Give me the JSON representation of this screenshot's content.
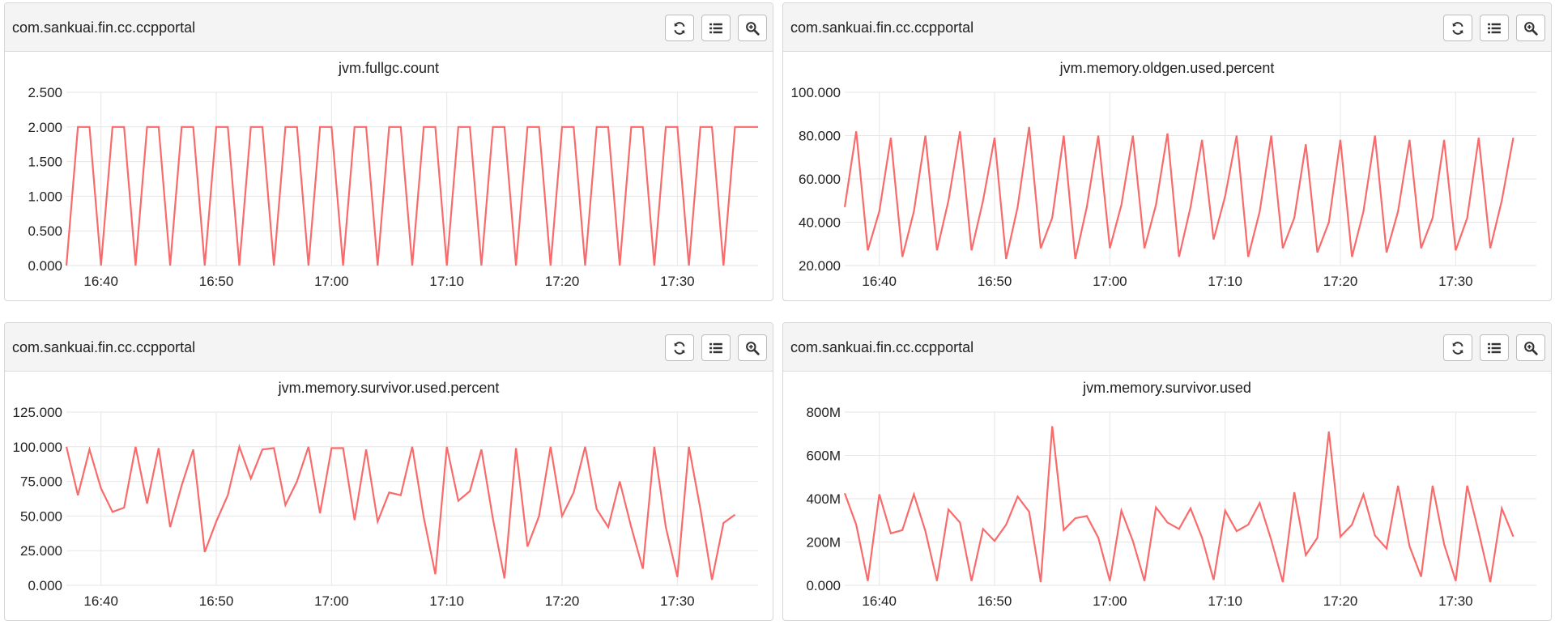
{
  "panels": [
    {
      "header": "com.sankuai.fin.cc.ccpportal",
      "buttons": {
        "refresh": "refresh-icon",
        "list": "list-icon",
        "zoom": "zoom-in-icon"
      }
    },
    {
      "header": "com.sankuai.fin.cc.ccpportal",
      "buttons": {
        "refresh": "refresh-icon",
        "list": "list-icon",
        "zoom": "zoom-in-icon"
      }
    },
    {
      "header": "com.sankuai.fin.cc.ccpportal",
      "buttons": {
        "refresh": "refresh-icon",
        "list": "list-icon",
        "zoom": "zoom-in-icon"
      }
    },
    {
      "header": "com.sankuai.fin.cc.ccpportal",
      "buttons": {
        "refresh": "refresh-icon",
        "list": "list-icon",
        "zoom": "zoom-in-icon"
      }
    }
  ],
  "colors": {
    "line": "#f96b6b",
    "grid": "#e6e6e6",
    "header_bg": "#f4f4f4"
  },
  "chart_data": [
    {
      "type": "line",
      "title": "jvm.fullgc.count",
      "xlim": [
        "16:37",
        "17:37"
      ],
      "ylim": [
        0,
        2.5
      ],
      "yticks": [
        0,
        0.5,
        1,
        1.5,
        2,
        2.5
      ],
      "yticklabels": [
        "0.000",
        "0.500",
        "1.000",
        "1.500",
        "2.000",
        "2.500"
      ],
      "xticks": [
        "16:40",
        "16:50",
        "17:00",
        "17:10",
        "17:20",
        "17:30"
      ],
      "grid": true,
      "series": [
        {
          "x": [
            "16:37",
            "16:38",
            "16:39",
            "16:40",
            "16:41",
            "16:42",
            "16:43",
            "16:44",
            "16:45",
            "16:46",
            "16:47",
            "16:48",
            "16:49",
            "16:50",
            "16:51",
            "16:52",
            "16:53",
            "16:54",
            "16:55",
            "16:56",
            "16:57",
            "16:58",
            "16:59",
            "17:00",
            "17:01",
            "17:02",
            "17:03",
            "17:04",
            "17:05",
            "17:06",
            "17:07",
            "17:08",
            "17:09",
            "17:10",
            "17:11",
            "17:12",
            "17:13",
            "17:14",
            "17:15",
            "17:16",
            "17:17",
            "17:18",
            "17:19",
            "17:20",
            "17:21",
            "17:22",
            "17:23",
            "17:24",
            "17:25",
            "17:26",
            "17:27",
            "17:28",
            "17:29",
            "17:30",
            "17:31",
            "17:32",
            "17:33",
            "17:34",
            "17:35",
            "17:36",
            "17:37"
          ],
          "y": [
            0,
            2,
            2,
            0,
            2,
            2,
            0,
            2,
            2,
            0,
            2,
            2,
            0,
            2,
            2,
            0,
            2,
            2,
            0,
            2,
            2,
            0,
            2,
            2,
            0,
            2,
            2,
            0,
            2,
            2,
            0,
            2,
            2,
            0,
            2,
            2,
            0,
            2,
            2,
            0,
            2,
            2,
            0,
            2,
            2,
            0,
            2,
            2,
            0,
            2,
            2,
            0,
            2,
            2,
            0,
            2,
            2,
            0,
            2,
            2,
            2
          ]
        }
      ]
    },
    {
      "type": "line",
      "title": "jvm.memory.oldgen.used.percent",
      "xlim": [
        "16:37",
        "17:37"
      ],
      "ylim": [
        20,
        100
      ],
      "yticks": [
        20,
        40,
        60,
        80,
        100
      ],
      "yticklabels": [
        "20.000",
        "40.000",
        "60.000",
        "80.000",
        "100.000"
      ],
      "xticks": [
        "16:40",
        "16:50",
        "17:00",
        "17:10",
        "17:20",
        "17:30"
      ],
      "grid": true,
      "series": [
        {
          "x": [
            "16:37",
            "16:38",
            "16:39",
            "16:40",
            "16:41",
            "16:42",
            "16:43",
            "16:44",
            "16:45",
            "16:46",
            "16:47",
            "16:48",
            "16:49",
            "16:50",
            "16:51",
            "16:52",
            "16:53",
            "16:54",
            "16:55",
            "16:56",
            "16:57",
            "16:58",
            "16:59",
            "17:00",
            "17:01",
            "17:02",
            "17:03",
            "17:04",
            "17:05",
            "17:06",
            "17:07",
            "17:08",
            "17:09",
            "17:10",
            "17:11",
            "17:12",
            "17:13",
            "17:14",
            "17:15",
            "17:16",
            "17:17",
            "17:18",
            "17:19",
            "17:20",
            "17:21",
            "17:22",
            "17:23",
            "17:24",
            "17:25",
            "17:26",
            "17:27",
            "17:28",
            "17:29",
            "17:30",
            "17:31",
            "17:32",
            "17:33",
            "17:34",
            "17:35",
            "17:36",
            "17:37"
          ],
          "y": [
            47,
            82,
            27,
            45,
            79,
            24,
            45,
            80,
            27,
            50,
            82,
            27,
            50,
            79,
            23,
            47,
            84,
            28,
            42,
            80,
            23,
            47,
            80,
            28,
            48,
            80,
            28,
            48,
            81,
            24,
            47,
            78,
            32,
            52,
            80,
            24,
            45,
            80,
            28,
            42,
            76,
            26,
            40,
            78,
            24,
            45,
            80,
            26,
            45,
            78,
            28,
            42,
            78,
            27,
            42,
            79,
            28,
            50,
            79,
            null,
            null
          ],
          "note_x": []
        }
      ]
    },
    {
      "type": "line",
      "title": "jvm.memory.survivor.used.percent",
      "xlim": [
        "16:37",
        "17:37"
      ],
      "ylim": [
        0,
        125
      ],
      "yticks": [
        0,
        25,
        50,
        75,
        100,
        125
      ],
      "yticklabels": [
        "0.000",
        "25.000",
        "50.000",
        "75.000",
        "100.000",
        "125.000"
      ],
      "xticks": [
        "16:40",
        "16:50",
        "17:00",
        "17:10",
        "17:20",
        "17:30"
      ],
      "grid": true,
      "series": [
        {
          "x": [
            "16:37",
            "16:38",
            "16:39",
            "16:40",
            "16:41",
            "16:42",
            "16:43",
            "16:44",
            "16:45",
            "16:46",
            "16:47",
            "16:48",
            "16:49",
            "16:50",
            "16:51",
            "16:52",
            "16:53",
            "16:54",
            "16:55",
            "16:56",
            "16:57",
            "16:58",
            "16:59",
            "17:00",
            "17:01",
            "17:02",
            "17:03",
            "17:04",
            "17:05",
            "17:06",
            "17:07",
            "17:08",
            "17:09",
            "17:10",
            "17:11",
            "17:12",
            "17:13",
            "17:14",
            "17:15",
            "17:16",
            "17:17",
            "17:18",
            "17:19",
            "17:20",
            "17:21",
            "17:22",
            "17:23",
            "17:24",
            "17:25",
            "17:26",
            "17:27",
            "17:28",
            "17:29",
            "17:30",
            "17:31",
            "17:32",
            "17:33",
            "17:34",
            "17:35",
            "17:36",
            "17:37"
          ],
          "y": [
            100,
            65,
            98,
            70,
            53,
            56,
            100,
            59,
            99,
            42,
            72,
            98,
            24,
            46,
            65,
            100,
            77,
            98,
            99,
            58,
            75,
            100,
            52,
            99,
            99,
            47,
            98,
            46,
            67,
            65,
            100,
            49,
            8,
            100,
            61,
            68,
            98,
            48,
            5,
            99,
            28,
            50,
            100,
            50,
            67,
            100,
            55,
            42,
            75,
            42,
            12,
            100,
            42,
            6,
            100,
            55,
            4,
            45,
            51,
            null,
            null
          ]
        }
      ]
    },
    {
      "type": "line",
      "title": "jvm.memory.survivor.used",
      "xlim": [
        "16:37",
        "17:37"
      ],
      "ylim": [
        0,
        800
      ],
      "yticks": [
        0,
        200,
        400,
        600,
        800
      ],
      "yticklabels": [
        "0.000",
        "200M",
        "400M",
        "600M",
        "800M"
      ],
      "xticks": [
        "16:40",
        "16:50",
        "17:00",
        "17:10",
        "17:20",
        "17:30"
      ],
      "grid": true,
      "series": [
        {
          "x": [
            "16:37",
            "16:38",
            "16:39",
            "16:40",
            "16:41",
            "16:42",
            "16:43",
            "16:44",
            "16:45",
            "16:46",
            "16:47",
            "16:48",
            "16:49",
            "16:50",
            "16:51",
            "16:52",
            "16:53",
            "16:54",
            "16:55",
            "16:56",
            "16:57",
            "16:58",
            "16:59",
            "17:00",
            "17:01",
            "17:02",
            "17:03",
            "17:04",
            "17:05",
            "17:06",
            "17:07",
            "17:08",
            "17:09",
            "17:10",
            "17:11",
            "17:12",
            "17:13",
            "17:14",
            "17:15",
            "17:16",
            "17:17",
            "17:18",
            "17:19",
            "17:20",
            "17:21",
            "17:22",
            "17:23",
            "17:24",
            "17:25",
            "17:26",
            "17:27",
            "17:28",
            "17:29",
            "17:30",
            "17:31",
            "17:32",
            "17:33",
            "17:34",
            "17:35",
            "17:36",
            "17:37"
          ],
          "y": [
            425,
            280,
            20,
            420,
            240,
            255,
            420,
            250,
            20,
            350,
            290,
            20,
            260,
            205,
            280,
            410,
            340,
            15,
            735,
            255,
            310,
            320,
            220,
            20,
            345,
            205,
            20,
            360,
            290,
            260,
            355,
            220,
            25,
            345,
            250,
            280,
            380,
            210,
            15,
            430,
            140,
            220,
            710,
            225,
            280,
            420,
            230,
            170,
            460,
            180,
            40,
            460,
            190,
            20,
            460,
            245,
            15,
            355,
            225,
            null,
            null
          ]
        }
      ]
    }
  ]
}
